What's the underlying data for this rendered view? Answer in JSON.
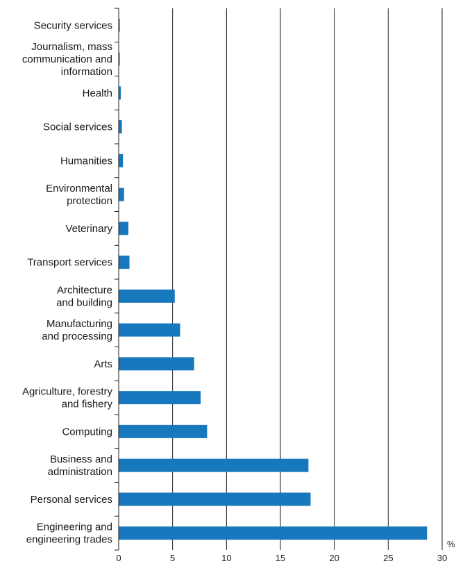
{
  "chart_data": {
    "type": "bar",
    "orientation": "horizontal",
    "categories": [
      [
        "Security services"
      ],
      [
        "Journalism, mass",
        "communication and",
        "information"
      ],
      [
        "Health"
      ],
      [
        "Social services"
      ],
      [
        "Humanities"
      ],
      [
        "Environmental",
        "protection"
      ],
      [
        "Veterinary"
      ],
      [
        "Transport services"
      ],
      [
        "Architecture",
        "and building"
      ],
      [
        "Manufacturing",
        "and processing"
      ],
      [
        "Arts"
      ],
      [
        "Agriculture, forestry",
        "and fishery"
      ],
      [
        "Computing"
      ],
      [
        "Business and",
        "administration"
      ],
      [
        "Personal services"
      ],
      [
        "Engineering and",
        "engineering trades"
      ]
    ],
    "values": [
      0.1,
      0.1,
      0.2,
      0.3,
      0.4,
      0.5,
      0.9,
      1.0,
      5.2,
      5.7,
      7.0,
      7.6,
      8.2,
      17.6,
      17.8,
      28.6
    ],
    "xlim": [
      0,
      30
    ],
    "xticks": [
      0,
      5,
      10,
      15,
      20,
      25,
      30
    ],
    "x_unit": "%",
    "bar_color": "#1878be",
    "grid": "vertical"
  }
}
